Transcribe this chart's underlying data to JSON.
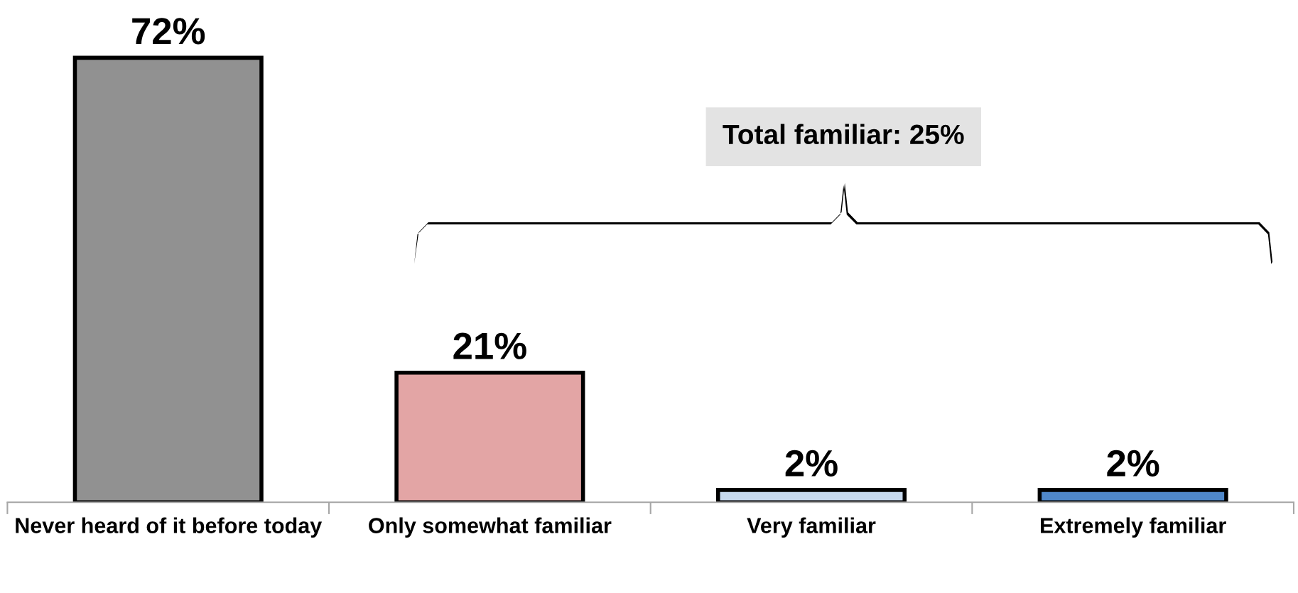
{
  "chart_data": {
    "type": "bar",
    "categories": [
      "Never heard of it before today",
      "Only somewhat familiar",
      "Very familiar",
      "Extremely familiar"
    ],
    "values": [
      72,
      21,
      2,
      2
    ],
    "colors": [
      "#919191",
      "#e3a5a5",
      "#c6d9ee",
      "#4f87c9"
    ],
    "value_labels": [
      "72%",
      "21%",
      "2%",
      "2%"
    ],
    "annotations": [
      "Total familiar: 25%"
    ],
    "grid": false,
    "legend": false
  }
}
